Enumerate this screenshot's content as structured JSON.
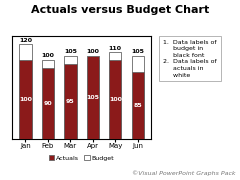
{
  "chart_data": {
    "type": "bar",
    "title": "Actuals versus Budget Chart",
    "categories": [
      "Jan",
      "Feb",
      "Mar",
      "Apr",
      "May",
      "Jun"
    ],
    "series": [
      {
        "name": "Actuals",
        "color": "#8B1A1A",
        "values": [
          100,
          90,
          95,
          105,
          100,
          85
        ]
      },
      {
        "name": "Budget",
        "color": "#FFFFFF",
        "values": [
          120,
          100,
          105,
          100,
          110,
          105
        ]
      }
    ],
    "ylim": [
      0,
      130
    ],
    "tick_labels": "x",
    "data_labels": true,
    "legend": "upper center",
    "annotations": [
      "1.  Data labels of\n     budget in\n     black font\n2.  Data labels of\n     actuals in\n     white",
      "©Visual PowerPoint Graphs Pack"
    ]
  }
}
